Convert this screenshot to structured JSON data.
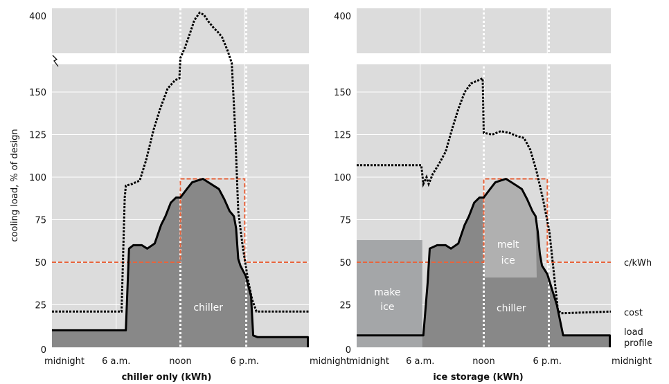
{
  "ylabel": "cooling load, % of design",
  "legend": {
    "price": "c/kWh",
    "cost": "cost",
    "load_line1": "load",
    "load_line2": "profile"
  },
  "colors": {
    "background": "#dcdcdc",
    "grid": "#ffffff",
    "chiller_fill": "#888888",
    "melt_ice_fill": "#b0b0b0",
    "make_ice_fill": "#a4a6a8",
    "price_line": "#e8643c",
    "load_line": "#000000",
    "cost_line": "#000000"
  },
  "chart_data": [
    {
      "type": "area",
      "title": "chiller only (kWh)",
      "x_tick_labels": [
        "midnight",
        "6 a.m.",
        "noon",
        "6 p.m.",
        "midnight"
      ],
      "x_ticks_hours": [
        0,
        6,
        12,
        18,
        24
      ],
      "y_ticks": [
        0,
        25,
        50,
        75,
        100,
        125,
        150
      ],
      "y_break_tick": 400,
      "ylim_lower": [
        0,
        165
      ],
      "broken_axis": true,
      "price_line": [
        [
          0,
          50
        ],
        [
          12,
          50
        ],
        [
          12,
          99
        ],
        [
          18,
          99
        ],
        [
          18,
          50
        ],
        [
          24,
          50
        ]
      ],
      "load_profile": [
        [
          0,
          10
        ],
        [
          6.9,
          10
        ],
        [
          7.2,
          58
        ],
        [
          7.6,
          60
        ],
        [
          8.4,
          60
        ],
        [
          8.9,
          58
        ],
        [
          9.6,
          61
        ],
        [
          10.2,
          72
        ],
        [
          10.6,
          77
        ],
        [
          11.1,
          85
        ],
        [
          11.6,
          88
        ],
        [
          12,
          88
        ],
        [
          12.6,
          93
        ],
        [
          13.1,
          97
        ],
        [
          13.6,
          98
        ],
        [
          14.1,
          99
        ],
        [
          14.6,
          97
        ],
        [
          15.1,
          95
        ],
        [
          15.6,
          93
        ],
        [
          16.1,
          87
        ],
        [
          16.6,
          80
        ],
        [
          17,
          77
        ],
        [
          17.2,
          70
        ],
        [
          17.4,
          52
        ],
        [
          17.6,
          48
        ],
        [
          18.1,
          42
        ],
        [
          18.6,
          30
        ],
        [
          18.8,
          7
        ],
        [
          19.2,
          6
        ],
        [
          23.9,
          6
        ],
        [
          23.9,
          0
        ]
      ],
      "cost": [
        [
          0,
          21
        ],
        [
          6.5,
          21
        ],
        [
          6.8,
          88
        ],
        [
          6.9,
          95
        ],
        [
          7.5,
          96
        ],
        [
          8.2,
          98
        ],
        [
          8.8,
          110
        ],
        [
          9.5,
          128
        ],
        [
          10.1,
          140
        ],
        [
          10.8,
          152
        ],
        [
          11.5,
          157
        ],
        [
          11.9,
          158
        ],
        [
          12,
          205
        ],
        [
          12.4,
          250
        ],
        [
          12.9,
          320
        ],
        [
          13.3,
          380
        ],
        [
          13.8,
          415
        ],
        [
          14.2,
          405
        ],
        [
          14.6,
          375
        ],
        [
          15.1,
          345
        ],
        [
          15.6,
          320
        ],
        [
          15.9,
          300
        ],
        [
          16.4,
          240
        ],
        [
          16.8,
          180
        ],
        [
          17.1,
          130
        ],
        [
          17.4,
          80
        ],
        [
          17.8,
          60
        ],
        [
          18.3,
          40
        ],
        [
          18.7,
          28
        ],
        [
          19.1,
          21
        ],
        [
          24,
          21
        ]
      ],
      "annotations": [
        "chiller"
      ]
    },
    {
      "type": "area",
      "title": "ice storage (kWh)",
      "x_tick_labels": [
        "midnight",
        "6 a.m.",
        "noon",
        "6 p.m.",
        "midnight"
      ],
      "x_ticks_hours": [
        0,
        6,
        12,
        18,
        24
      ],
      "y_ticks": [
        0,
        25,
        50,
        75,
        100,
        125,
        150
      ],
      "y_break_tick": 400,
      "ylim_lower": [
        0,
        165
      ],
      "broken_axis": true,
      "price_line": [
        [
          0,
          50
        ],
        [
          12,
          50
        ],
        [
          12,
          99
        ],
        [
          18,
          99
        ],
        [
          18,
          50
        ],
        [
          24,
          50
        ]
      ],
      "load_profile": [
        [
          0,
          7
        ],
        [
          6.3,
          7
        ],
        [
          6.7,
          38
        ],
        [
          6.9,
          58
        ],
        [
          7.6,
          60
        ],
        [
          8.4,
          60
        ],
        [
          8.9,
          58
        ],
        [
          9.6,
          61
        ],
        [
          10.2,
          72
        ],
        [
          10.6,
          77
        ],
        [
          11.1,
          85
        ],
        [
          11.6,
          88
        ],
        [
          12,
          88
        ],
        [
          12.6,
          93
        ],
        [
          13.1,
          97
        ],
        [
          13.6,
          98
        ],
        [
          14.1,
          99
        ],
        [
          14.6,
          97
        ],
        [
          15.1,
          95
        ],
        [
          15.6,
          93
        ],
        [
          16.1,
          87
        ],
        [
          16.6,
          80
        ],
        [
          16.9,
          77
        ],
        [
          17.1,
          68
        ],
        [
          17.3,
          55
        ],
        [
          17.5,
          48
        ],
        [
          18,
          43
        ],
        [
          18.5,
          33
        ],
        [
          18.9,
          25
        ],
        [
          19.5,
          7
        ],
        [
          23.9,
          7
        ],
        [
          23.9,
          0
        ]
      ],
      "cost": [
        [
          0,
          107
        ],
        [
          6.1,
          107
        ],
        [
          6.3,
          96
        ],
        [
          6.6,
          100
        ],
        [
          6.8,
          96
        ],
        [
          7.2,
          102
        ],
        [
          7.8,
          108
        ],
        [
          8.4,
          115
        ],
        [
          9,
          128
        ],
        [
          9.6,
          140
        ],
        [
          10.2,
          150
        ],
        [
          10.8,
          155
        ],
        [
          11.9,
          158
        ],
        [
          12,
          126
        ],
        [
          12.8,
          125
        ],
        [
          13.6,
          127
        ],
        [
          14.4,
          126
        ],
        [
          15.2,
          124
        ],
        [
          15.8,
          123
        ],
        [
          16.4,
          116
        ],
        [
          17,
          103
        ],
        [
          17.6,
          87
        ],
        [
          18.2,
          68
        ],
        [
          18.6,
          45
        ],
        [
          19,
          22
        ],
        [
          19.3,
          20
        ],
        [
          24,
          21
        ]
      ],
      "make_ice": {
        "x_range": [
          0,
          6.2
        ],
        "top": 63
      },
      "melt_ice": {
        "x_range": [
          12,
          17
        ],
        "bottom": 41
      },
      "annotations": [
        "make",
        "ice",
        "melt",
        "ice",
        "chiller"
      ]
    }
  ]
}
